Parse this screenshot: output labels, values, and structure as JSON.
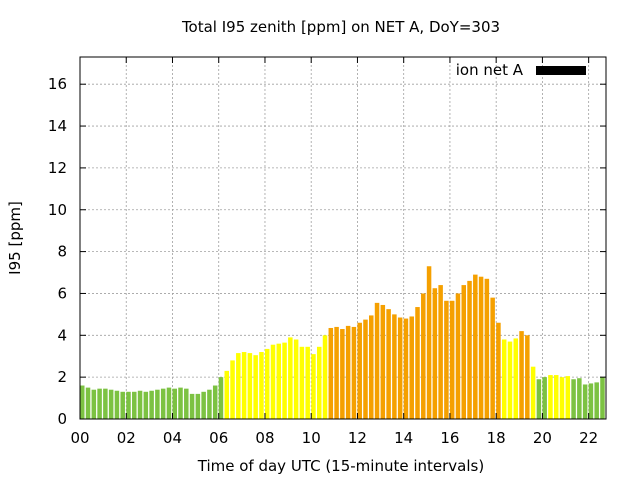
{
  "chart_data": {
    "type": "bar",
    "title": "Total I95 zenith [ppm] on NET A, DoY=303",
    "xlabel": "Time of day UTC (15-minute intervals)",
    "ylabel": "I95 [ppm]",
    "legend": {
      "label": "ion net A",
      "color": "#000000",
      "placement": "top-right"
    },
    "ylim": [
      0,
      17.3
    ],
    "y_ticks": [
      0,
      2,
      4,
      6,
      8,
      10,
      12,
      14,
      16
    ],
    "x_ticks": [
      {
        "value": 0,
        "label": "00"
      },
      {
        "value": 2,
        "label": "02"
      },
      {
        "value": 4,
        "label": "04"
      },
      {
        "value": 6,
        "label": "06"
      },
      {
        "value": 8,
        "label": "08"
      },
      {
        "value": 10,
        "label": "10"
      },
      {
        "value": 12,
        "label": "12"
      },
      {
        "value": 14,
        "label": "14"
      },
      {
        "value": 16,
        "label": "16"
      },
      {
        "value": 18,
        "label": "18"
      },
      {
        "value": 20,
        "label": "20"
      },
      {
        "value": 22,
        "label": "22"
      }
    ],
    "x_range_hours": [
      0,
      22.75
    ],
    "grid": true,
    "interval_hours": 0.25,
    "level_colors": {
      "green": "#7cc242",
      "yellow": "#ffff00",
      "orange": "#f5a000"
    },
    "bars": [
      {
        "hour": 0.0,
        "value": 1.6,
        "level": "green"
      },
      {
        "hour": 0.25,
        "value": 1.5,
        "level": "green"
      },
      {
        "hour": 0.5,
        "value": 1.4,
        "level": "green"
      },
      {
        "hour": 0.75,
        "value": 1.45,
        "level": "green"
      },
      {
        "hour": 1.0,
        "value": 1.45,
        "level": "green"
      },
      {
        "hour": 1.25,
        "value": 1.4,
        "level": "green"
      },
      {
        "hour": 1.5,
        "value": 1.35,
        "level": "green"
      },
      {
        "hour": 1.75,
        "value": 1.3,
        "level": "green"
      },
      {
        "hour": 2.0,
        "value": 1.3,
        "level": "green"
      },
      {
        "hour": 2.25,
        "value": 1.3,
        "level": "green"
      },
      {
        "hour": 2.5,
        "value": 1.35,
        "level": "green"
      },
      {
        "hour": 2.75,
        "value": 1.3,
        "level": "green"
      },
      {
        "hour": 3.0,
        "value": 1.35,
        "level": "green"
      },
      {
        "hour": 3.25,
        "value": 1.4,
        "level": "green"
      },
      {
        "hour": 3.5,
        "value": 1.45,
        "level": "green"
      },
      {
        "hour": 3.75,
        "value": 1.5,
        "level": "green"
      },
      {
        "hour": 4.0,
        "value": 1.45,
        "level": "green"
      },
      {
        "hour": 4.25,
        "value": 1.5,
        "level": "green"
      },
      {
        "hour": 4.5,
        "value": 1.45,
        "level": "green"
      },
      {
        "hour": 4.75,
        "value": 1.2,
        "level": "green"
      },
      {
        "hour": 5.0,
        "value": 1.2,
        "level": "green"
      },
      {
        "hour": 5.25,
        "value": 1.3,
        "level": "green"
      },
      {
        "hour": 5.5,
        "value": 1.4,
        "level": "green"
      },
      {
        "hour": 5.75,
        "value": 1.6,
        "level": "green"
      },
      {
        "hour": 6.0,
        "value": 2.0,
        "level": "green"
      },
      {
        "hour": 6.25,
        "value": 2.3,
        "level": "yellow"
      },
      {
        "hour": 6.5,
        "value": 2.8,
        "level": "yellow"
      },
      {
        "hour": 6.75,
        "value": 3.15,
        "level": "yellow"
      },
      {
        "hour": 7.0,
        "value": 3.2,
        "level": "yellow"
      },
      {
        "hour": 7.25,
        "value": 3.15,
        "level": "yellow"
      },
      {
        "hour": 7.5,
        "value": 3.05,
        "level": "yellow"
      },
      {
        "hour": 7.75,
        "value": 3.2,
        "level": "yellow"
      },
      {
        "hour": 8.0,
        "value": 3.35,
        "level": "yellow"
      },
      {
        "hour": 8.25,
        "value": 3.55,
        "level": "yellow"
      },
      {
        "hour": 8.5,
        "value": 3.6,
        "level": "yellow"
      },
      {
        "hour": 8.75,
        "value": 3.65,
        "level": "yellow"
      },
      {
        "hour": 9.0,
        "value": 3.9,
        "level": "yellow"
      },
      {
        "hour": 9.25,
        "value": 3.8,
        "level": "yellow"
      },
      {
        "hour": 9.5,
        "value": 3.45,
        "level": "yellow"
      },
      {
        "hour": 9.75,
        "value": 3.45,
        "level": "yellow"
      },
      {
        "hour": 10.0,
        "value": 3.1,
        "level": "yellow"
      },
      {
        "hour": 10.25,
        "value": 3.45,
        "level": "yellow"
      },
      {
        "hour": 10.5,
        "value": 4.0,
        "level": "yellow"
      },
      {
        "hour": 10.75,
        "value": 4.35,
        "level": "orange"
      },
      {
        "hour": 11.0,
        "value": 4.4,
        "level": "orange"
      },
      {
        "hour": 11.25,
        "value": 4.3,
        "level": "orange"
      },
      {
        "hour": 11.5,
        "value": 4.45,
        "level": "orange"
      },
      {
        "hour": 11.75,
        "value": 4.4,
        "level": "orange"
      },
      {
        "hour": 12.0,
        "value": 4.6,
        "level": "orange"
      },
      {
        "hour": 12.25,
        "value": 4.75,
        "level": "orange"
      },
      {
        "hour": 12.5,
        "value": 4.95,
        "level": "orange"
      },
      {
        "hour": 12.75,
        "value": 5.55,
        "level": "orange"
      },
      {
        "hour": 13.0,
        "value": 5.45,
        "level": "orange"
      },
      {
        "hour": 13.25,
        "value": 5.25,
        "level": "orange"
      },
      {
        "hour": 13.5,
        "value": 5.0,
        "level": "orange"
      },
      {
        "hour": 13.75,
        "value": 4.85,
        "level": "orange"
      },
      {
        "hour": 14.0,
        "value": 4.8,
        "level": "orange"
      },
      {
        "hour": 14.25,
        "value": 4.9,
        "level": "orange"
      },
      {
        "hour": 14.5,
        "value": 5.35,
        "level": "orange"
      },
      {
        "hour": 14.75,
        "value": 6.0,
        "level": "orange"
      },
      {
        "hour": 15.0,
        "value": 7.3,
        "level": "orange"
      },
      {
        "hour": 15.25,
        "value": 6.25,
        "level": "orange"
      },
      {
        "hour": 15.5,
        "value": 6.4,
        "level": "orange"
      },
      {
        "hour": 15.75,
        "value": 5.65,
        "level": "orange"
      },
      {
        "hour": 16.0,
        "value": 5.65,
        "level": "orange"
      },
      {
        "hour": 16.25,
        "value": 6.0,
        "level": "orange"
      },
      {
        "hour": 16.5,
        "value": 6.4,
        "level": "orange"
      },
      {
        "hour": 16.75,
        "value": 6.6,
        "level": "orange"
      },
      {
        "hour": 17.0,
        "value": 6.9,
        "level": "orange"
      },
      {
        "hour": 17.25,
        "value": 6.8,
        "level": "orange"
      },
      {
        "hour": 17.5,
        "value": 6.7,
        "level": "orange"
      },
      {
        "hour": 17.75,
        "value": 5.8,
        "level": "orange"
      },
      {
        "hour": 18.0,
        "value": 4.6,
        "level": "orange"
      },
      {
        "hour": 18.25,
        "value": 3.8,
        "level": "yellow"
      },
      {
        "hour": 18.5,
        "value": 3.7,
        "level": "yellow"
      },
      {
        "hour": 18.75,
        "value": 3.85,
        "level": "yellow"
      },
      {
        "hour": 19.0,
        "value": 4.2,
        "level": "orange"
      },
      {
        "hour": 19.25,
        "value": 4.0,
        "level": "orange"
      },
      {
        "hour": 19.5,
        "value": 2.5,
        "level": "yellow"
      },
      {
        "hour": 19.75,
        "value": 1.9,
        "level": "green"
      },
      {
        "hour": 20.0,
        "value": 2.0,
        "level": "green"
      },
      {
        "hour": 20.25,
        "value": 2.1,
        "level": "yellow"
      },
      {
        "hour": 20.5,
        "value": 2.1,
        "level": "yellow"
      },
      {
        "hour": 20.75,
        "value": 2.0,
        "level": "yellow"
      },
      {
        "hour": 21.0,
        "value": 2.05,
        "level": "yellow"
      },
      {
        "hour": 21.25,
        "value": 1.9,
        "level": "green"
      },
      {
        "hour": 21.5,
        "value": 1.95,
        "level": "green"
      },
      {
        "hour": 21.75,
        "value": 1.65,
        "level": "green"
      },
      {
        "hour": 22.0,
        "value": 1.7,
        "level": "green"
      },
      {
        "hour": 22.25,
        "value": 1.75,
        "level": "green"
      },
      {
        "hour": 22.5,
        "value": 2.0,
        "level": "green"
      },
      {
        "hour": 22.75,
        "value": 1.85,
        "level": "green"
      }
    ]
  }
}
